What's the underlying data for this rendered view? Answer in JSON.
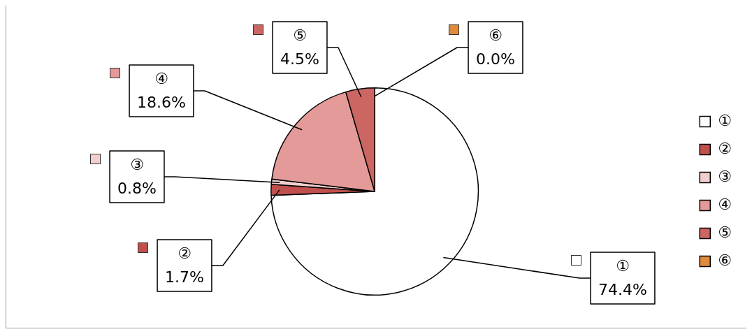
{
  "chart_data": {
    "type": "pie",
    "categories": [
      "①",
      "②",
      "③",
      "④",
      "⑤",
      "⑥"
    ],
    "values": [
      74.4,
      1.7,
      0.8,
      18.6,
      4.5,
      0.0
    ],
    "value_labels": [
      "74.4%",
      "1.7%",
      "0.8%",
      "18.6%",
      "4.5%",
      "0.0%"
    ],
    "colors": [
      "#ffffff",
      "#c0504d",
      "#f2cfce",
      "#e39a98",
      "#cc6663",
      "#e08a3c"
    ],
    "legend": "right"
  }
}
